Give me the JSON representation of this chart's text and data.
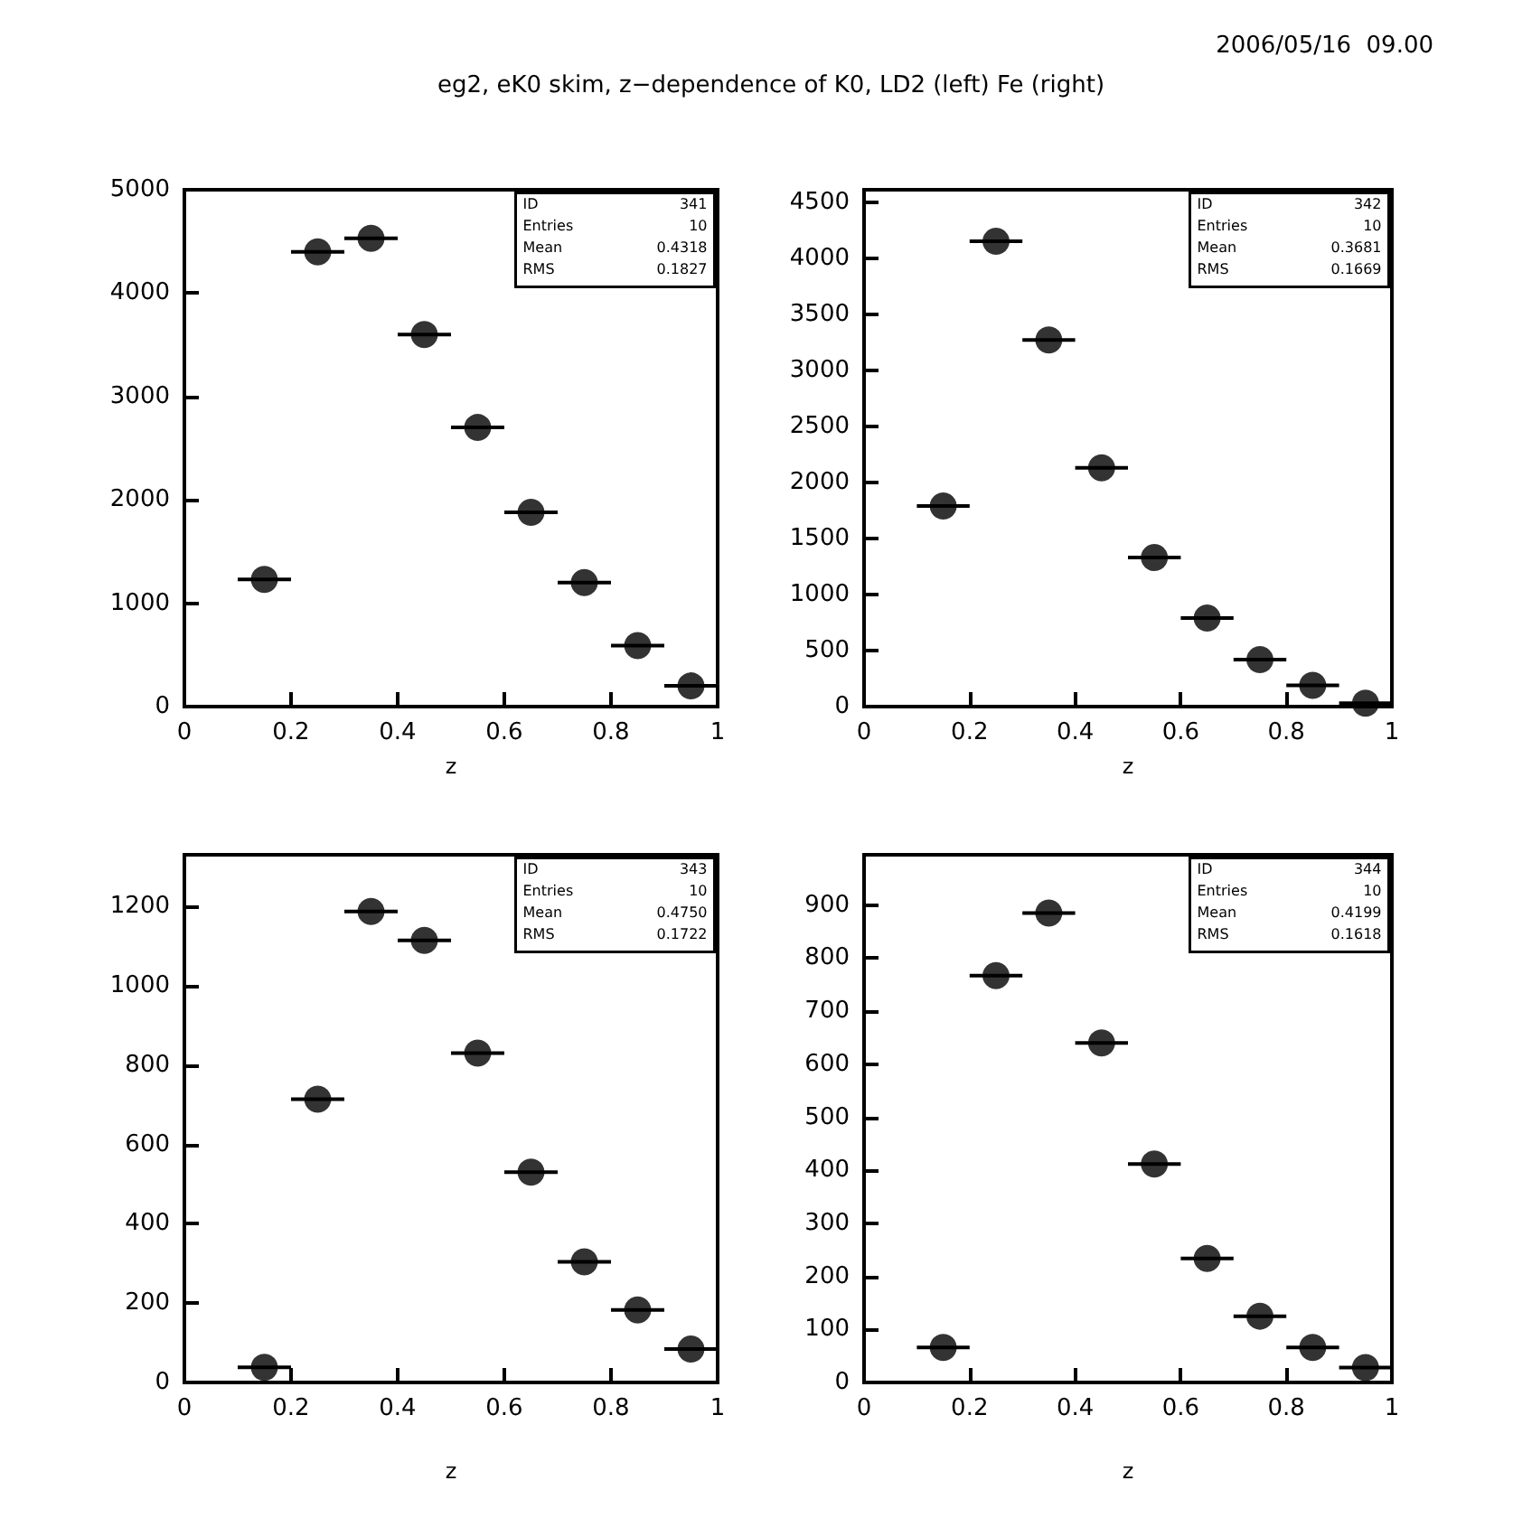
{
  "chart_data": [
    {
      "type": "scatter",
      "title": "eg2, eK0 skim, z−dependence of K0, LD2 (left) Fe (right)",
      "xlabel": "z",
      "x": [
        0.15,
        0.25,
        0.35,
        0.45,
        0.55,
        0.65,
        0.75,
        0.85,
        0.95
      ],
      "values": [
        1230,
        4400,
        4530,
        3600,
        2700,
        1880,
        1200,
        590,
        200
      ],
      "xerrors": [
        0.05,
        0.05,
        0.05,
        0.05,
        0.05,
        0.05,
        0.05,
        0.05,
        0.05
      ],
      "color": "#000000",
      "marker": "circle",
      "xlim": [
        0,
        1
      ],
      "xticks": [
        0,
        0.2,
        0.4,
        0.6,
        0.8,
        1
      ],
      "ylim": [
        0,
        5000
      ],
      "yticks": [
        0,
        1000,
        2000,
        3000,
        4000,
        5000
      ],
      "grid": false,
      "annotations": [
        "ID 341",
        "Entries 10",
        "Mean 0.4318",
        "RMS 0.1827"
      ]
    },
    {
      "type": "scatter",
      "subtitle": "2006/05/16  09.00",
      "xlabel": "z",
      "x": [
        0.15,
        0.25,
        0.35,
        0.45,
        0.55,
        0.65,
        0.75,
        0.85,
        0.95
      ],
      "values": [
        1790,
        4150,
        3270,
        2130,
        1330,
        790,
        420,
        190,
        30
      ],
      "xerrors": [
        0.05,
        0.05,
        0.05,
        0.05,
        0.05,
        0.05,
        0.05,
        0.05,
        0.05
      ],
      "color": "#000000",
      "marker": "circle",
      "xlim": [
        0,
        1
      ],
      "xticks": [
        0,
        0.2,
        0.4,
        0.6,
        0.8,
        1
      ],
      "ylim": [
        0,
        4610
      ],
      "yticks": [
        0,
        500,
        1000,
        1500,
        2000,
        2500,
        3000,
        3500,
        4000,
        4500
      ],
      "grid": false,
      "annotations": [
        "ID 342",
        "Entries 10",
        "Mean 0.3681",
        "RMS 0.1669"
      ]
    },
    {
      "type": "scatter",
      "xlabel": "z",
      "x": [
        0.15,
        0.25,
        0.35,
        0.45,
        0.55,
        0.65,
        0.75,
        0.85,
        0.95
      ],
      "values": [
        38,
        714,
        1187,
        1114,
        830,
        530,
        304,
        183,
        84
      ],
      "xerrors": [
        0.05,
        0.05,
        0.05,
        0.05,
        0.05,
        0.05,
        0.05,
        0.05,
        0.05
      ],
      "color": "#000000",
      "marker": "circle",
      "xlim": [
        0,
        1
      ],
      "xticks": [
        0,
        0.2,
        0.4,
        0.6,
        0.8,
        1
      ],
      "ylim": [
        0,
        1330
      ],
      "yticks": [
        0,
        200,
        400,
        600,
        800,
        1000,
        1200
      ],
      "grid": false,
      "annotations": [
        "ID 343",
        "Entries 10",
        "Mean 0.4750",
        "RMS 0.1722"
      ]
    },
    {
      "type": "scatter",
      "xlabel": "z",
      "x": [
        0.15,
        0.25,
        0.35,
        0.45,
        0.55,
        0.65,
        0.75,
        0.85,
        0.95
      ],
      "values": [
        66,
        767,
        885,
        640,
        412,
        234,
        125,
        66,
        28
      ],
      "xerrors": [
        0.05,
        0.05,
        0.05,
        0.05,
        0.05,
        0.05,
        0.05,
        0.05,
        0.05
      ],
      "color": "#000000",
      "marker": "circle",
      "xlim": [
        0,
        1
      ],
      "xticks": [
        0,
        0.2,
        0.4,
        0.6,
        0.8,
        1
      ],
      "ylim": [
        0,
        995
      ],
      "yticks": [
        0,
        100,
        200,
        300,
        400,
        500,
        600,
        700,
        800,
        900
      ],
      "grid": false,
      "annotations": [
        "ID 344",
        "Entries 10",
        "Mean 0.4199",
        "RMS 0.1618"
      ]
    }
  ]
}
